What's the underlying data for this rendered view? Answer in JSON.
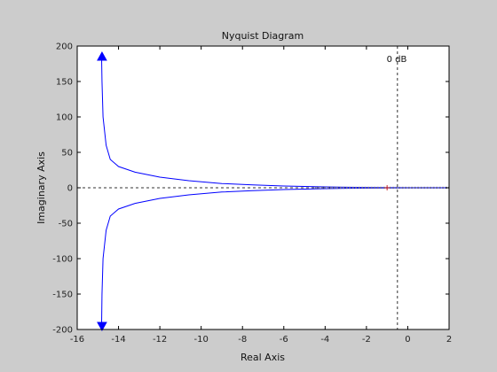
{
  "chart_data": {
    "type": "line",
    "title": "Nyquist Diagram",
    "xlabel": "Real Axis",
    "ylabel": "Imaginary Axis",
    "xlim": [
      -16,
      2
    ],
    "ylim": [
      -200,
      200
    ],
    "xticks": [
      -16,
      -14,
      -12,
      -10,
      -8,
      -6,
      -4,
      -2,
      0,
      2
    ],
    "yticks": [
      -200,
      -150,
      -100,
      -50,
      0,
      50,
      100,
      150,
      200
    ],
    "grid": false,
    "annotation": "0 dB",
    "critical_point": [
      -1,
      0
    ],
    "zero_db_line_x": -0.5,
    "asymptote_x": -14.8,
    "series": [
      {
        "color": "#0000ff",
        "x": [
          -14.82,
          -14.8,
          -14.75,
          -14.6,
          -14.4,
          -14.0,
          -13.2,
          -12.0,
          -10.6,
          -9.0,
          -7.5,
          -6.0,
          -4.5,
          -3.0,
          -1.5,
          -0.8,
          0.0,
          2.0
        ],
        "y": [
          185,
          150,
          100,
          60,
          40,
          30,
          22,
          15,
          10,
          6,
          4,
          2.5,
          1.5,
          0.8,
          0.3,
          0.15,
          0.05,
          0.0
        ]
      },
      {
        "color": "#0000ff",
        "x": [
          -14.82,
          -14.8,
          -14.75,
          -14.6,
          -14.4,
          -14.0,
          -13.2,
          -12.0,
          -10.6,
          -9.0,
          -7.5,
          -6.0,
          -4.5,
          -3.0,
          -1.5,
          -0.8,
          0.0,
          2.0
        ],
        "y": [
          -195,
          -150,
          -100,
          -60,
          -40,
          -30,
          -22,
          -15,
          -10,
          -6,
          -4,
          -2.5,
          -1.5,
          -0.8,
          -0.3,
          -0.15,
          -0.05,
          0.0
        ]
      }
    ],
    "arrows": [
      {
        "x": -14.8,
        "y": 185,
        "direction": "up"
      },
      {
        "x": -14.8,
        "y": -195,
        "direction": "down"
      }
    ]
  }
}
